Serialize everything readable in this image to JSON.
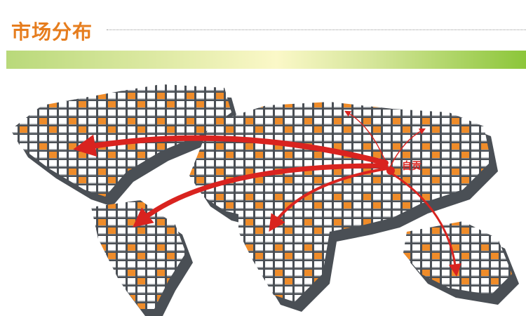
{
  "header": {
    "title": "市场分布"
  },
  "map": {
    "origin_label": "自贡",
    "colors": {
      "title": "#e67d1e",
      "arrow": "#d9231f",
      "block_top": "#ffffff",
      "block_side": "#4a4f55",
      "block_accent": "#ef8c2a"
    },
    "arrows": [
      "north-america",
      "south-america",
      "africa",
      "australia",
      "north-asia",
      "east-asia"
    ]
  }
}
